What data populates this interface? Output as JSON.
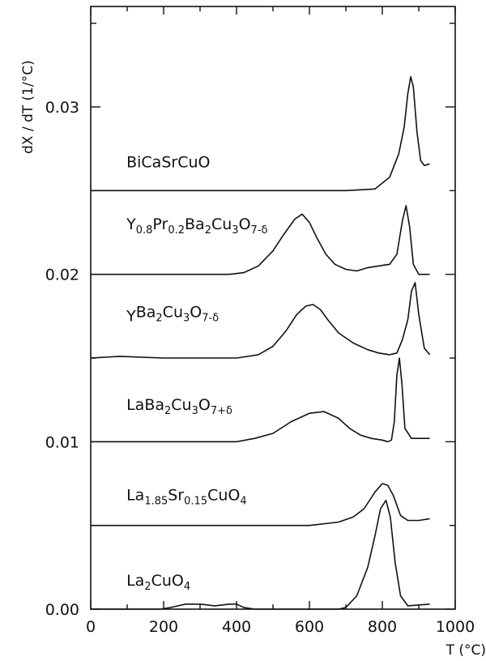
{
  "chart_data": {
    "type": "line",
    "ylabel": "dX / dT  (1/°C)",
    "xlabel": "T (°C)",
    "xlim": [
      0,
      1000
    ],
    "ylim": [
      0,
      0.036
    ],
    "x_ticks": [
      0,
      200,
      400,
      600,
      800,
      1000
    ],
    "y_ticks": [
      0.0,
      0.01,
      0.02,
      0.03
    ],
    "y_tick_labels": [
      "0.00",
      "0.01",
      "0.02",
      "0.03"
    ],
    "grid": false,
    "legend": "none",
    "series": [
      {
        "name": "BiCaSrCuO",
        "label_main": "BiCaSrCuO",
        "label_sub": [],
        "offset": 0.025,
        "label_at": [
          98,
          0.0264
        ],
        "points": [
          [
            0,
            0
          ],
          [
            200,
            0
          ],
          [
            400,
            0
          ],
          [
            600,
            0
          ],
          [
            700,
            0
          ],
          [
            780,
            0.0001
          ],
          [
            820,
            0.0008
          ],
          [
            845,
            0.0022
          ],
          [
            860,
            0.0038
          ],
          [
            870,
            0.0058
          ],
          [
            878,
            0.0068
          ],
          [
            885,
            0.0062
          ],
          [
            895,
            0.0035
          ],
          [
            905,
            0.0018
          ],
          [
            915,
            0.0015
          ],
          [
            930,
            0.0016
          ]
        ]
      },
      {
        "name": "Y0.8Pr0.2Ba2Cu3O7-δ",
        "label_main": "Y",
        "label_sub": [
          "0.8",
          "Pr",
          "0.2",
          "Ba",
          "2",
          "Cu",
          "3",
          "O",
          "7-δ"
        ],
        "offset": 0.02,
        "label_at": [
          98,
          0.0227
        ],
        "points": [
          [
            0,
            0
          ],
          [
            200,
            0
          ],
          [
            380,
            0
          ],
          [
            420,
            0.0001
          ],
          [
            460,
            0.0005
          ],
          [
            500,
            0.0014
          ],
          [
            530,
            0.0024
          ],
          [
            560,
            0.0033
          ],
          [
            580,
            0.0036
          ],
          [
            600,
            0.0031
          ],
          [
            620,
            0.0022
          ],
          [
            645,
            0.0012
          ],
          [
            670,
            0.0006
          ],
          [
            700,
            0.0003
          ],
          [
            730,
            0.0002
          ],
          [
            760,
            0.0004
          ],
          [
            790,
            0.0005
          ],
          [
            820,
            0.0006
          ],
          [
            840,
            0.0012
          ],
          [
            855,
            0.0032
          ],
          [
            865,
            0.0041
          ],
          [
            875,
            0.0028
          ],
          [
            885,
            0.0006
          ],
          [
            900,
            0
          ],
          [
            930,
            0
          ]
        ]
      },
      {
        "name": "YBa2Cu3O7-δ",
        "label_main": "Y",
        "label_sub": [
          "",
          "Ba",
          "2",
          "Cu",
          "3",
          "O",
          "7-δ"
        ],
        "offset": 0.015,
        "label_at": [
          98,
          0.0172
        ],
        "points": [
          [
            0,
            0
          ],
          [
            80,
            0.0001
          ],
          [
            200,
            0
          ],
          [
            400,
            0
          ],
          [
            460,
            0.0002
          ],
          [
            500,
            0.0007
          ],
          [
            535,
            0.0016
          ],
          [
            565,
            0.0026
          ],
          [
            590,
            0.0031
          ],
          [
            610,
            0.0032
          ],
          [
            630,
            0.0029
          ],
          [
            650,
            0.0023
          ],
          [
            680,
            0.0015
          ],
          [
            720,
            0.0009
          ],
          [
            760,
            0.0005
          ],
          [
            790,
            0.0003
          ],
          [
            820,
            0.0002
          ],
          [
            840,
            0.0003
          ],
          [
            855,
            0.0011
          ],
          [
            870,
            0.0023
          ],
          [
            880,
            0.004
          ],
          [
            890,
            0.0045
          ],
          [
            900,
            0.0026
          ],
          [
            915,
            0.0006
          ],
          [
            930,
            0.0002
          ]
        ]
      },
      {
        "name": "LaBa2Cu3O7+δ",
        "label_main": "LaBa",
        "label_sub": [
          "2",
          "Cu",
          "3",
          "O",
          "7+δ"
        ],
        "offset": 0.01,
        "label_at": [
          98,
          0.0119
        ],
        "points": [
          [
            0,
            0
          ],
          [
            200,
            0
          ],
          [
            400,
            0
          ],
          [
            450,
            0.0002
          ],
          [
            500,
            0.0005
          ],
          [
            550,
            0.0012
          ],
          [
            600,
            0.0017
          ],
          [
            640,
            0.0018
          ],
          [
            680,
            0.0014
          ],
          [
            710,
            0.0008
          ],
          [
            740,
            0.0004
          ],
          [
            770,
            0.0002
          ],
          [
            800,
            0.0001
          ],
          [
            815,
            0
          ],
          [
            825,
            0.0001
          ],
          [
            833,
            0.0012
          ],
          [
            840,
            0.004
          ],
          [
            847,
            0.005
          ],
          [
            854,
            0.0034
          ],
          [
            862,
            0.0008
          ],
          [
            880,
            0.0002
          ],
          [
            930,
            0.0002
          ]
        ]
      },
      {
        "name": "La1.85Sr0.15CuO4",
        "label_main": "La",
        "label_sub": [
          "1.85",
          "Sr",
          "0.15",
          "CuO",
          "4"
        ],
        "offset": 0.005,
        "label_at": [
          98,
          0.0065
        ],
        "points": [
          [
            0,
            0
          ],
          [
            200,
            0
          ],
          [
            400,
            0
          ],
          [
            600,
            0
          ],
          [
            680,
            0.0002
          ],
          [
            720,
            0.0005
          ],
          [
            750,
            0.001
          ],
          [
            780,
            0.002
          ],
          [
            800,
            0.0025
          ],
          [
            815,
            0.0024
          ],
          [
            830,
            0.0018
          ],
          [
            850,
            0.0006
          ],
          [
            870,
            0.0003
          ],
          [
            900,
            0.0003
          ],
          [
            930,
            0.0004
          ]
        ]
      },
      {
        "name": "La2CuO4",
        "label_main": "La",
        "label_sub": [
          "2",
          "CuO",
          "4"
        ],
        "offset": 0.0,
        "label_at": [
          98,
          0.0014
        ],
        "points": [
          [
            0,
            0
          ],
          [
            190,
            0
          ],
          [
            220,
            0.0001
          ],
          [
            260,
            0.0003
          ],
          [
            300,
            0.0003
          ],
          [
            340,
            0.0002
          ],
          [
            380,
            0.0003
          ],
          [
            400,
            0.0003
          ],
          [
            420,
            0.0001
          ],
          [
            450,
            0
          ],
          [
            600,
            0
          ],
          [
            680,
            0
          ],
          [
            700,
            0.0001
          ],
          [
            730,
            0.0008
          ],
          [
            760,
            0.0025
          ],
          [
            780,
            0.0044
          ],
          [
            795,
            0.006
          ],
          [
            810,
            0.0065
          ],
          [
            822,
            0.0055
          ],
          [
            835,
            0.0028
          ],
          [
            850,
            0.0008
          ],
          [
            870,
            0.0002
          ],
          [
            930,
            0.0003
          ]
        ]
      }
    ]
  }
}
